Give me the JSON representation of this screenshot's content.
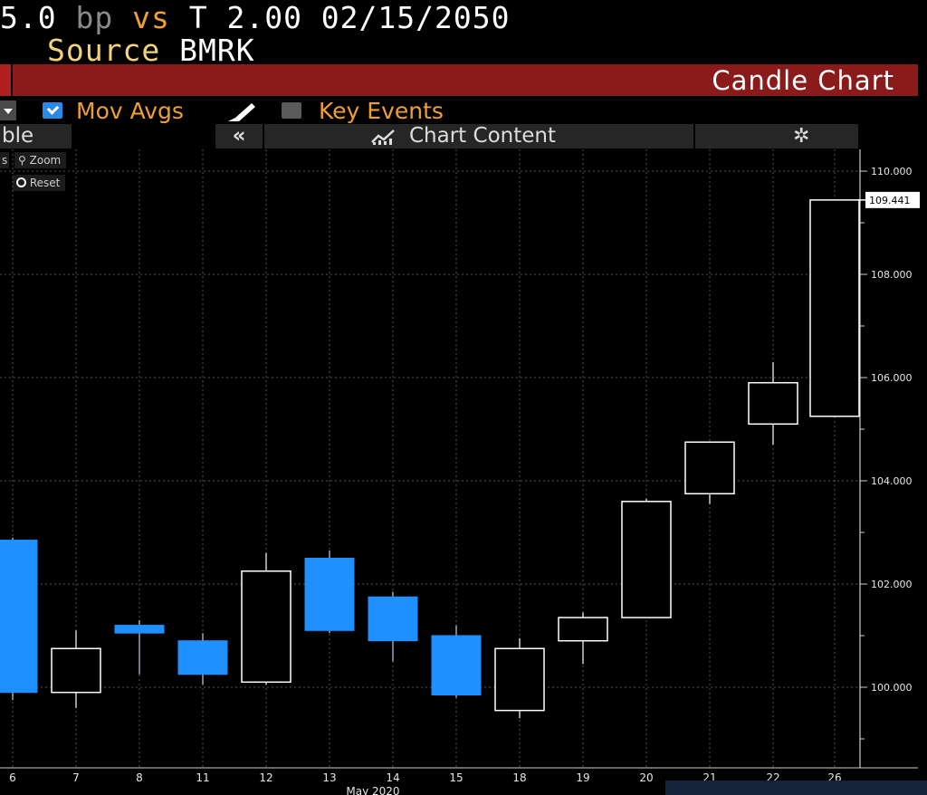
{
  "header": {
    "line1": {
      "spread": "5.0",
      "unit": "bp",
      "vs": "vs",
      "benchmark": "T 2.00 02/15/2050"
    },
    "line2": {
      "label": "Source",
      "value": "BMRK"
    }
  },
  "titlebar": {
    "title": "Candle Chart"
  },
  "toolbar": {
    "mov_avgs_label": "Mov Avgs",
    "mov_avgs_checked": true,
    "key_events_label": "Key Events",
    "key_events_checked": false
  },
  "tabs": {
    "left_tab_label": "ble",
    "collapse_label": "«",
    "chart_content_label": "Chart Content"
  },
  "controls": {
    "zoom_label": "Zoom",
    "reset_label": "Reset",
    "left_partial": "s"
  },
  "colors": {
    "down_candle": "#1e90ff",
    "up_candle_outline": "#ffffff",
    "background": "#000000",
    "titlebar": "#8b1a1a",
    "accent_label": "#f0a030"
  },
  "chart_data": {
    "type": "candlestick",
    "x_month_label": "May 2020",
    "ylim": [
      98.2,
      110.4
    ],
    "y_ticks": [
      100,
      102,
      104,
      106,
      108,
      110
    ],
    "y_tick_labels": [
      "100.000",
      "102.000",
      "104.000",
      "106.000",
      "108.000",
      "110.000"
    ],
    "last_value_label": "109.441",
    "last_value": 109.441,
    "candles": [
      {
        "label": "6",
        "open": 102.85,
        "high": 102.9,
        "low": 99.75,
        "close": 99.9
      },
      {
        "label": "7",
        "open": 99.9,
        "high": 101.1,
        "low": 99.6,
        "close": 100.75
      },
      {
        "label": "8",
        "open": 101.2,
        "high": 101.3,
        "low": 100.25,
        "close": 101.05
      },
      {
        "label": "11",
        "open": 100.9,
        "high": 101.05,
        "low": 100.05,
        "close": 100.25
      },
      {
        "label": "12",
        "open": 100.1,
        "high": 102.6,
        "low": 100.05,
        "close": 102.25
      },
      {
        "label": "13",
        "open": 102.5,
        "high": 102.65,
        "low": 101.05,
        "close": 101.1
      },
      {
        "label": "14",
        "open": 101.75,
        "high": 101.85,
        "low": 100.5,
        "close": 100.9
      },
      {
        "label": "15",
        "open": 101.0,
        "high": 101.2,
        "low": 99.8,
        "close": 99.85
      },
      {
        "label": "18",
        "open": 99.55,
        "high": 100.95,
        "low": 99.4,
        "close": 100.75
      },
      {
        "label": "19",
        "open": 100.9,
        "high": 101.45,
        "low": 100.45,
        "close": 101.35
      },
      {
        "label": "20",
        "open": 101.35,
        "high": 103.65,
        "low": 101.35,
        "close": 103.6
      },
      {
        "label": "21",
        "open": 103.75,
        "high": 104.75,
        "low": 103.55,
        "close": 104.75
      },
      {
        "label": "22",
        "open": 105.1,
        "high": 106.3,
        "low": 104.7,
        "close": 105.9
      },
      {
        "label": "26",
        "open": 105.25,
        "high": 109.44,
        "low": 105.25,
        "close": 109.441
      }
    ]
  }
}
